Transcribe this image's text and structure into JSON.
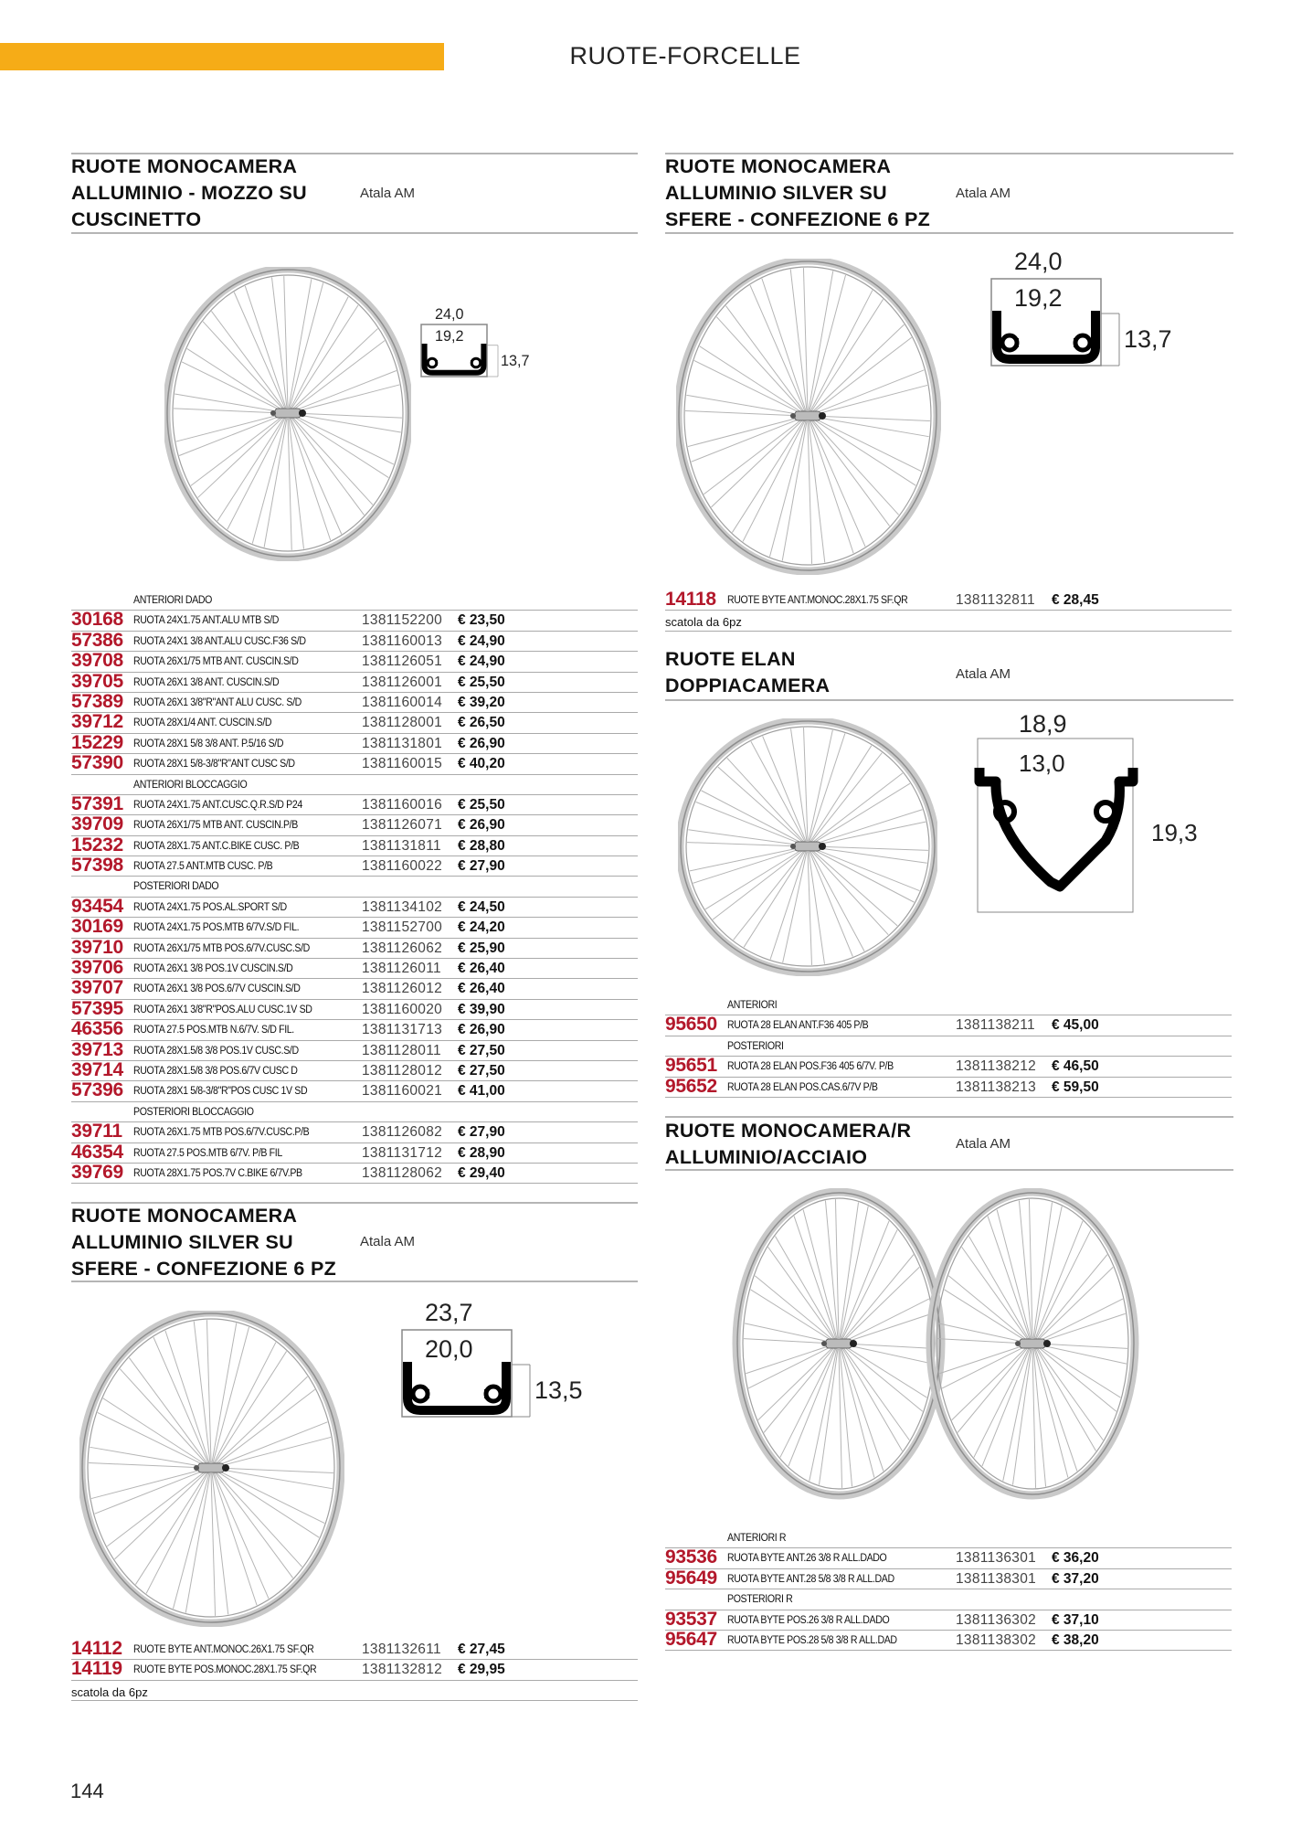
{
  "header": {
    "title": "RUOTE-FORCELLE",
    "accent": "#f6ac17"
  },
  "page_number": "144",
  "colors": {
    "code": "#b3182b",
    "rule": "#b5b5b5"
  },
  "sections": [
    {
      "title_lines": [
        "RUOTE MONOCAMERA",
        "ALLUMINIO - MOZZO SU",
        "CUSCINETTO"
      ],
      "brand": "Atala AM",
      "rim": {
        "outer": "24,0",
        "inner": "19,2",
        "height": "13,7"
      },
      "rows": [
        {
          "sub": "ANTERIORI DADO"
        },
        {
          "code": "30168",
          "desc": "RUOTA 24X1.75 ANT.ALU MTB  S/D",
          "ref": "1381152200",
          "price": "€ 23,50"
        },
        {
          "code": "57386",
          "desc": "RUOTA 24X1 3/8 ANT.ALU CUSC.F36 S/D",
          "ref": "1381160013",
          "price": "€ 24,90"
        },
        {
          "code": "39708",
          "desc": "RUOTA 26X1/75 MTB ANT.  CUSCIN.S/D",
          "ref": "1381126051",
          "price": "€ 24,90"
        },
        {
          "code": "39705",
          "desc": "RUOTA 26X1 3/8  ANT.  CUSCIN.S/D",
          "ref": "1381126001",
          "price": "€ 25,50"
        },
        {
          "code": "57389",
          "desc": "RUOTA 26X1 3/8\"R\"ANT ALU CUSC.  S/D",
          "ref": "1381160014",
          "price": "€ 39,20"
        },
        {
          "code": "39712",
          "desc": "RUOTA 28X1/4  ANT.     CUSCIN.S/D",
          "ref": "1381128001",
          "price": "€ 26,50"
        },
        {
          "code": "15229",
          "desc": "RUOTA 28X1 5/8 3/8 ANT. P.5/16 S/D",
          "ref": "1381131801",
          "price": "€ 26,90"
        },
        {
          "code": "57390",
          "desc": "RUOTA 28X1 5/8-3/8\"R\"ANT CUSC  S/D",
          "ref": "1381160015",
          "price": "€ 40,20"
        },
        {
          "sub": "ANTERIORI BLOCCAGGIO"
        },
        {
          "code": "57391",
          "desc": "RUOTA 24X1.75 ANT.CUSC.Q.R.S/D  P24",
          "ref": "1381160016",
          "price": "€ 25,50"
        },
        {
          "code": "39709",
          "desc": "RUOTA 26X1/75 MTB ANT.  CUSCIN.P/B",
          "ref": "1381126071",
          "price": "€ 26,90"
        },
        {
          "code": "15232",
          "desc": "RUOTA 28X1.75 ANT.C.BIKE CUSC. P/B",
          "ref": "1381131811",
          "price": "€ 28,80"
        },
        {
          "code": "57398",
          "desc": "RUOTA 27.5 ANT.MTB CUSC.      P/B",
          "ref": "1381160022",
          "price": "€ 27,90"
        },
        {
          "sub": "POSTERIORI DADO"
        },
        {
          "code": "93454",
          "desc": "RUOTA 24X1.75 POS.AL.SPORT S/D",
          "ref": "1381134102",
          "price": "€ 24,50"
        },
        {
          "code": "30169",
          "desc": "RUOTA 24X1.75 POS.MTB 6/7V.S/D FIL.",
          "ref": "1381152700",
          "price": "€ 24,20"
        },
        {
          "code": "39710",
          "desc": "RUOTA 26X1/75 MTB POS.6/7V.CUSC.S/D",
          "ref": "1381126062",
          "price": "€ 25,90"
        },
        {
          "code": "39706",
          "desc": "RUOTA 26X1 3/8  POS.1V  CUSCIN.S/D",
          "ref": "1381126011",
          "price": "€ 26,40"
        },
        {
          "code": "39707",
          "desc": "RUOTA 26X1 3/8  POS.6/7V CUSCIN.S/D",
          "ref": "1381126012",
          "price": "€ 26,40"
        },
        {
          "code": "57395",
          "desc": "RUOTA 26X1 3/8\"R\"POS.ALU CUSC.1V SD",
          "ref": "1381160020",
          "price": "€ 39,90"
        },
        {
          "code": "46356",
          "desc": "RUOTA 27.5 POS.MTB N.6/7V. S/D FIL.",
          "ref": "1381131713",
          "price": "€ 26,90"
        },
        {
          "code": "39713",
          "desc": "RUOTA 28X1.5/8 3/8 POS.1V CUSC.S/D",
          "ref": "1381128011",
          "price": "€ 27,50"
        },
        {
          "code": "39714",
          "desc": "RUOTA 28X1.5/8 3/8 POS.6/7V CUSC D",
          "ref": "1381128012",
          "price": "€ 27,50"
        },
        {
          "code": "57396",
          "desc": "RUOTA 28X1 5/8-3/8\"R\"POS CUSC 1V SD",
          "ref": "1381160021",
          "price": "€ 41,00"
        },
        {
          "sub": "POSTERIORI BLOCCAGGIO"
        },
        {
          "code": "39711",
          "desc": "RUOTA 26X1.75 MTB POS.6/7V.CUSC.P/B",
          "ref": "1381126082",
          "price": "€ 27,90"
        },
        {
          "code": "46354",
          "desc": "RUOTA 27.5 POS.MTB 6/7V.  P/B FIL",
          "ref": "1381131712",
          "price": "€ 28,90"
        },
        {
          "code": "39769",
          "desc": "RUOTA 28X1.75 POS.7V C.BIKE 6/7V.PB",
          "ref": "1381128062",
          "price": "€ 29,40"
        }
      ]
    },
    {
      "title_lines": [
        "RUOTE MONOCAMERA",
        "ALLUMINIO SILVER SU",
        "SFERE - CONFEZIONE 6 PZ"
      ],
      "brand": "Atala AM",
      "rim": {
        "outer": "24,0",
        "inner": "19,2",
        "height": "13,7"
      },
      "rows": [
        {
          "code": "14118",
          "desc": "RUOTE BYTE ANT.MONOC.28X1.75 SF.QR",
          "ref": "1381132811",
          "price": "€ 28,45"
        },
        {
          "note": "scatola da 6pz"
        }
      ]
    },
    {
      "title_lines": [
        "RUOTE ELAN",
        "DOPPIACAMERA"
      ],
      "brand": "Atala AM",
      "rim": {
        "outer": "18,9",
        "inner": "13,0",
        "height": "19,3"
      },
      "rows": [
        {
          "sub": "ANTERIORI"
        },
        {
          "code": "95650",
          "desc": "RUOTA 28 ELAN ANT.F36 405  P/B",
          "ref": "1381138211",
          "price": "€ 45,00"
        },
        {
          "sub": "POSTERIORI"
        },
        {
          "code": "95651",
          "desc": "RUOTA 28 ELAN POS.F36 405 6/7V. P/B",
          "ref": "1381138212",
          "price": "€ 46,50"
        },
        {
          "code": "95652",
          "desc": "RUOTA 28 ELAN POS.CAS.6/7V P/B",
          "ref": "1381138213",
          "price": "€ 59,50"
        }
      ]
    },
    {
      "title_lines": [
        "RUOTE MONOCAMERA",
        "ALLUMINIO SILVER SU",
        "SFERE - CONFEZIONE 6 PZ"
      ],
      "brand": "Atala AM",
      "rim": {
        "outer": "23,7",
        "inner": "20,0",
        "height": "13,5"
      },
      "rows": [
        {
          "code": "14112",
          "desc": "RUOTE BYTE ANT.MONOC.26X1.75 SF.QR",
          "ref": "1381132611",
          "price": "€ 27,45"
        },
        {
          "code": "14119",
          "desc": "RUOTE BYTE POS.MONOC.28X1.75 SF.QR",
          "ref": "1381132812",
          "price": "€ 29,95"
        },
        {
          "note": "scatola da 6pz"
        }
      ]
    },
    {
      "title_lines": [
        "RUOTE MONOCAMERA/R",
        "ALLUMINIO/ACCIAIO"
      ],
      "brand": "Atala AM",
      "rows": [
        {
          "sub": "ANTERIORI R"
        },
        {
          "code": "93536",
          "desc": "RUOTA BYTE ANT.26 3/8 R ALL.DADO",
          "ref": "1381136301",
          "price": "€ 36,20"
        },
        {
          "code": "95649",
          "desc": "RUOTA BYTE ANT.28 5/8 3/8 R ALL.DAD",
          "ref": "1381138301",
          "price": "€ 37,20"
        },
        {
          "sub": "POSTERIORI R"
        },
        {
          "code": "93537",
          "desc": "RUOTA BYTE POS.26 3/8 R ALL.DADO",
          "ref": "1381136302",
          "price": "€ 37,10"
        },
        {
          "code": "95647",
          "desc": "RUOTA BYTE POS.28 5/8 3/8 R ALL.DAD",
          "ref": "1381138302",
          "price": "€ 38,20"
        }
      ]
    }
  ]
}
